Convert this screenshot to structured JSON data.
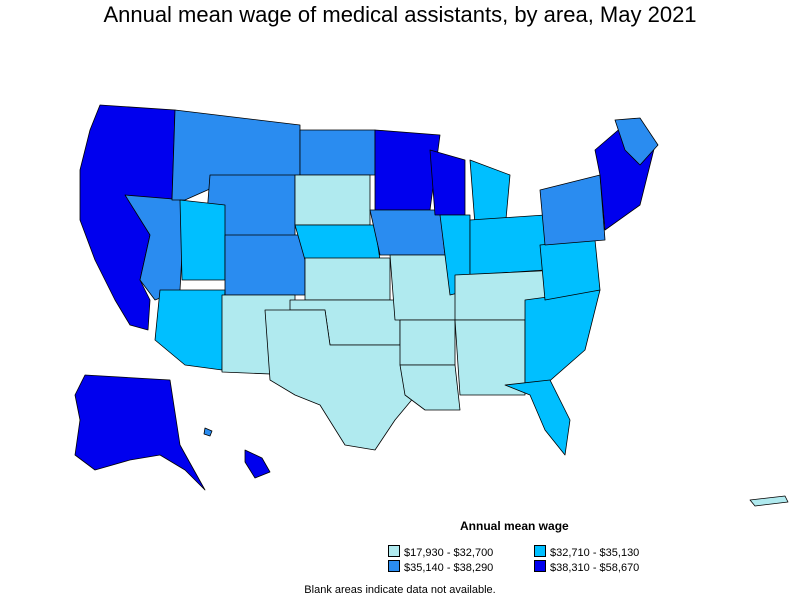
{
  "title": "Annual mean wage of medical assistants, by area, May 2021",
  "legend": {
    "title": "Annual mean wage",
    "items": [
      {
        "label": "$17,930 - $32,700",
        "color": "#b0eaef"
      },
      {
        "label": "$32,710 - $35,130",
        "color": "#00bfff"
      },
      {
        "label": "$35,140 - $38,290",
        "color": "#2a8cf0"
      },
      {
        "label": "$38,310 - $58,670",
        "color": "#0000ee"
      }
    ]
  },
  "note": "Blank areas indicate data not available.",
  "colors": {
    "c1": "#b0eaef",
    "c2": "#00bfff",
    "c3": "#2a8cf0",
    "c4": "#0000ee"
  }
}
